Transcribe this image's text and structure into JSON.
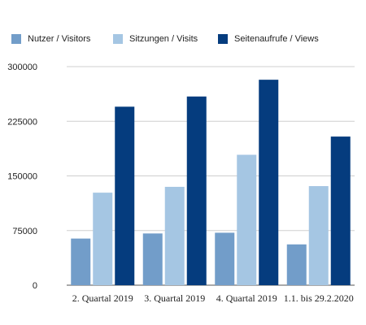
{
  "chart_data": {
    "type": "bar",
    "title": "",
    "xlabel": "",
    "ylabel": "",
    "ylim": [
      0,
      300000
    ],
    "yticks": [
      0,
      75000,
      150000,
      225000,
      300000
    ],
    "grid": true,
    "legend_position": "top",
    "categories": [
      "2. Quartal 2019",
      "3. Quartal 2019",
      "4. Quartal 2019",
      "1.1. bis 29.2.2020"
    ],
    "series": [
      {
        "name": "Nutzer / Visitors",
        "color": "#729dc9",
        "values": [
          64000,
          71000,
          72000,
          56000
        ]
      },
      {
        "name": "Sitzungen / Visits",
        "color": "#a5c6e3",
        "values": [
          127000,
          135000,
          179000,
          136000
        ]
      },
      {
        "name": "Seitenaufrufe / Views",
        "color": "#053c7e",
        "values": [
          245000,
          259000,
          282000,
          204000
        ]
      }
    ]
  }
}
